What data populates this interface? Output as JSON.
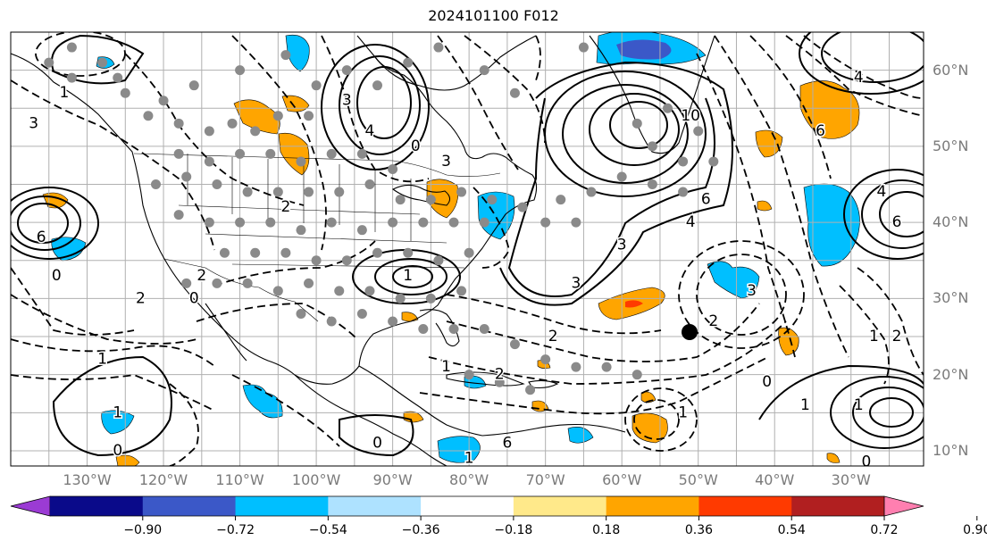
{
  "title": "2024101100 F012",
  "lat_labels": [
    {
      "text": "60°N",
      "lat": 60
    },
    {
      "text": "50°N",
      "lat": 50
    },
    {
      "text": "40°N",
      "lat": 40
    },
    {
      "text": "30°N",
      "lat": 30
    },
    {
      "text": "20°N",
      "lat": 20
    },
    {
      "text": "10°N",
      "lat": 10
    }
  ],
  "lon_labels": [
    {
      "text": "130°W",
      "lon": -130
    },
    {
      "text": "120°W",
      "lon": -120
    },
    {
      "text": "110°W",
      "lon": -110
    },
    {
      "text": "100°W",
      "lon": -100
    },
    {
      "text": "90°W",
      "lon": -90
    },
    {
      "text": "80°W",
      "lon": -80
    },
    {
      "text": "70°W",
      "lon": -70
    },
    {
      "text": "60°W",
      "lon": -60
    },
    {
      "text": "50°W",
      "lon": -50
    },
    {
      "text": "40°W",
      "lon": -40
    },
    {
      "text": "30°W",
      "lon": -30
    }
  ],
  "colorbar": {
    "colors": [
      "#9b3bd4",
      "#0a0a8a",
      "#3b58c8",
      "#00bfff",
      "#aee2ff",
      "#ffffff",
      "#ffe98a",
      "#ffa500",
      "#ff3a00",
      "#b11f20",
      "#ff7fb0"
    ],
    "labels": [
      "−0.90",
      "−0.72",
      "−0.54",
      "−0.36",
      "−0.18",
      "0.18",
      "0.36",
      "0.54",
      "0.72",
      "0.90"
    ]
  },
  "contour_labels": [
    {
      "text": "1",
      "lon": -133,
      "lat": 57
    },
    {
      "text": "3",
      "lon": -137,
      "lat": 53
    },
    {
      "text": "6",
      "lon": -136,
      "lat": 38
    },
    {
      "text": "3",
      "lon": -96,
      "lat": 56
    },
    {
      "text": "4",
      "lon": -93,
      "lat": 52
    },
    {
      "text": "0",
      "lon": -87,
      "lat": 50
    },
    {
      "text": "3",
      "lon": -83,
      "lat": 48
    },
    {
      "text": "2",
      "lon": -104,
      "lat": 42
    },
    {
      "text": "1",
      "lon": -88,
      "lat": 33
    },
    {
      "text": "2",
      "lon": -115,
      "lat": 33
    },
    {
      "text": "0",
      "lon": -116,
      "lat": 30
    },
    {
      "text": "2",
      "lon": -123,
      "lat": 30
    },
    {
      "text": "10",
      "lon": -51,
      "lat": 54
    },
    {
      "text": "6",
      "lon": -49,
      "lat": 43
    },
    {
      "text": "4",
      "lon": -51,
      "lat": 40
    },
    {
      "text": "3",
      "lon": -60,
      "lat": 37
    },
    {
      "text": "3",
      "lon": -66,
      "lat": 32
    },
    {
      "text": "6",
      "lon": -34,
      "lat": 52
    },
    {
      "text": "4",
      "lon": -29,
      "lat": 59
    },
    {
      "text": "4",
      "lon": -26,
      "lat": 44
    },
    {
      "text": "6",
      "lon": -24,
      "lat": 40
    },
    {
      "text": "3",
      "lon": -43,
      "lat": 31
    },
    {
      "text": "2",
      "lon": -48,
      "lat": 27
    },
    {
      "text": "1",
      "lon": -27,
      "lat": 25
    },
    {
      "text": "2",
      "lon": -24,
      "lat": 25
    },
    {
      "text": "2",
      "lon": -69,
      "lat": 25
    },
    {
      "text": "2",
      "lon": -76,
      "lat": 20
    },
    {
      "text": "1",
      "lon": -83,
      "lat": 21
    },
    {
      "text": "0",
      "lon": -41,
      "lat": 19
    },
    {
      "text": "1",
      "lon": -36,
      "lat": 16
    },
    {
      "text": "1",
      "lon": -29,
      "lat": 16
    },
    {
      "text": "1",
      "lon": -52,
      "lat": 15
    },
    {
      "text": "1",
      "lon": -126,
      "lat": 15
    },
    {
      "text": "0",
      "lon": -126,
      "lat": 10
    },
    {
      "text": "0",
      "lon": -92,
      "lat": 11
    },
    {
      "text": "1",
      "lon": -80,
      "lat": 9
    },
    {
      "text": "6",
      "lon": -75,
      "lat": 11
    },
    {
      "text": "0",
      "lon": -28,
      "lat": 8.5
    },
    {
      "text": "0",
      "lon": -134,
      "lat": 33
    },
    {
      "text": "1",
      "lon": -128,
      "lat": 22
    }
  ],
  "dot_positions": [
    [
      -132,
      63
    ],
    [
      -125,
      57
    ],
    [
      -122,
      54
    ],
    [
      -118,
      53
    ],
    [
      -114,
      52
    ],
    [
      -111,
      53
    ],
    [
      -108,
      52
    ],
    [
      -105,
      54
    ],
    [
      -101,
      54
    ],
    [
      -118,
      49
    ],
    [
      -114,
      48
    ],
    [
      -110,
      49
    ],
    [
      -106,
      49
    ],
    [
      -102,
      48
    ],
    [
      -98,
      49
    ],
    [
      -94,
      49
    ],
    [
      -90,
      47
    ],
    [
      -121,
      45
    ],
    [
      -117,
      46
    ],
    [
      -113,
      45
    ],
    [
      -109,
      44
    ],
    [
      -105,
      44
    ],
    [
      -101,
      44
    ],
    [
      -97,
      44
    ],
    [
      -93,
      45
    ],
    [
      -89,
      43
    ],
    [
      -85,
      43
    ],
    [
      -81,
      44
    ],
    [
      -77,
      43
    ],
    [
      -73,
      42
    ],
    [
      -118,
      41
    ],
    [
      -114,
      40
    ],
    [
      -110,
      40
    ],
    [
      -106,
      40
    ],
    [
      -102,
      39
    ],
    [
      -98,
      40
    ],
    [
      -94,
      39
    ],
    [
      -90,
      40
    ],
    [
      -86,
      40
    ],
    [
      -82,
      40
    ],
    [
      -78,
      40
    ],
    [
      -112,
      36
    ],
    [
      -108,
      36
    ],
    [
      -104,
      36
    ],
    [
      -100,
      35
    ],
    [
      -96,
      35
    ],
    [
      -92,
      36
    ],
    [
      -88,
      36
    ],
    [
      -84,
      35
    ],
    [
      -80,
      36
    ],
    [
      -117,
      32
    ],
    [
      -113,
      32
    ],
    [
      -109,
      32
    ],
    [
      -105,
      31
    ],
    [
      -101,
      32
    ],
    [
      -97,
      31
    ],
    [
      -93,
      31
    ],
    [
      -89,
      30
    ],
    [
      -85,
      30
    ],
    [
      -81,
      31
    ],
    [
      -102,
      28
    ],
    [
      -98,
      27
    ],
    [
      -94,
      28
    ],
    [
      -90,
      27
    ],
    [
      -86,
      26
    ],
    [
      -82,
      26
    ],
    [
      -78,
      26
    ],
    [
      -74,
      24
    ],
    [
      -70,
      22
    ],
    [
      -66,
      21
    ],
    [
      -62,
      21
    ],
    [
      -58,
      20
    ],
    [
      -80,
      20
    ],
    [
      -76,
      19
    ],
    [
      -72,
      18
    ],
    [
      -56,
      50
    ],
    [
      -52,
      48
    ],
    [
      -48,
      48
    ],
    [
      -60,
      46
    ],
    [
      -56,
      45
    ],
    [
      -52,
      44
    ],
    [
      -64,
      44
    ],
    [
      -68,
      43
    ],
    [
      -70,
      40
    ],
    [
      -66,
      40
    ],
    [
      -58,
      53
    ],
    [
      -54,
      55
    ],
    [
      -50,
      52
    ],
    [
      -74,
      57
    ],
    [
      -78,
      60
    ],
    [
      -84,
      63
    ],
    [
      -88,
      61
    ],
    [
      -92,
      58
    ],
    [
      -96,
      60
    ],
    [
      -100,
      58
    ],
    [
      -104,
      62
    ],
    [
      -110,
      60
    ],
    [
      -116,
      58
    ],
    [
      -120,
      56
    ],
    [
      -126,
      59
    ],
    [
      -128,
      61
    ],
    [
      -132,
      59
    ],
    [
      -135,
      61
    ],
    [
      -65,
      63
    ]
  ]
}
